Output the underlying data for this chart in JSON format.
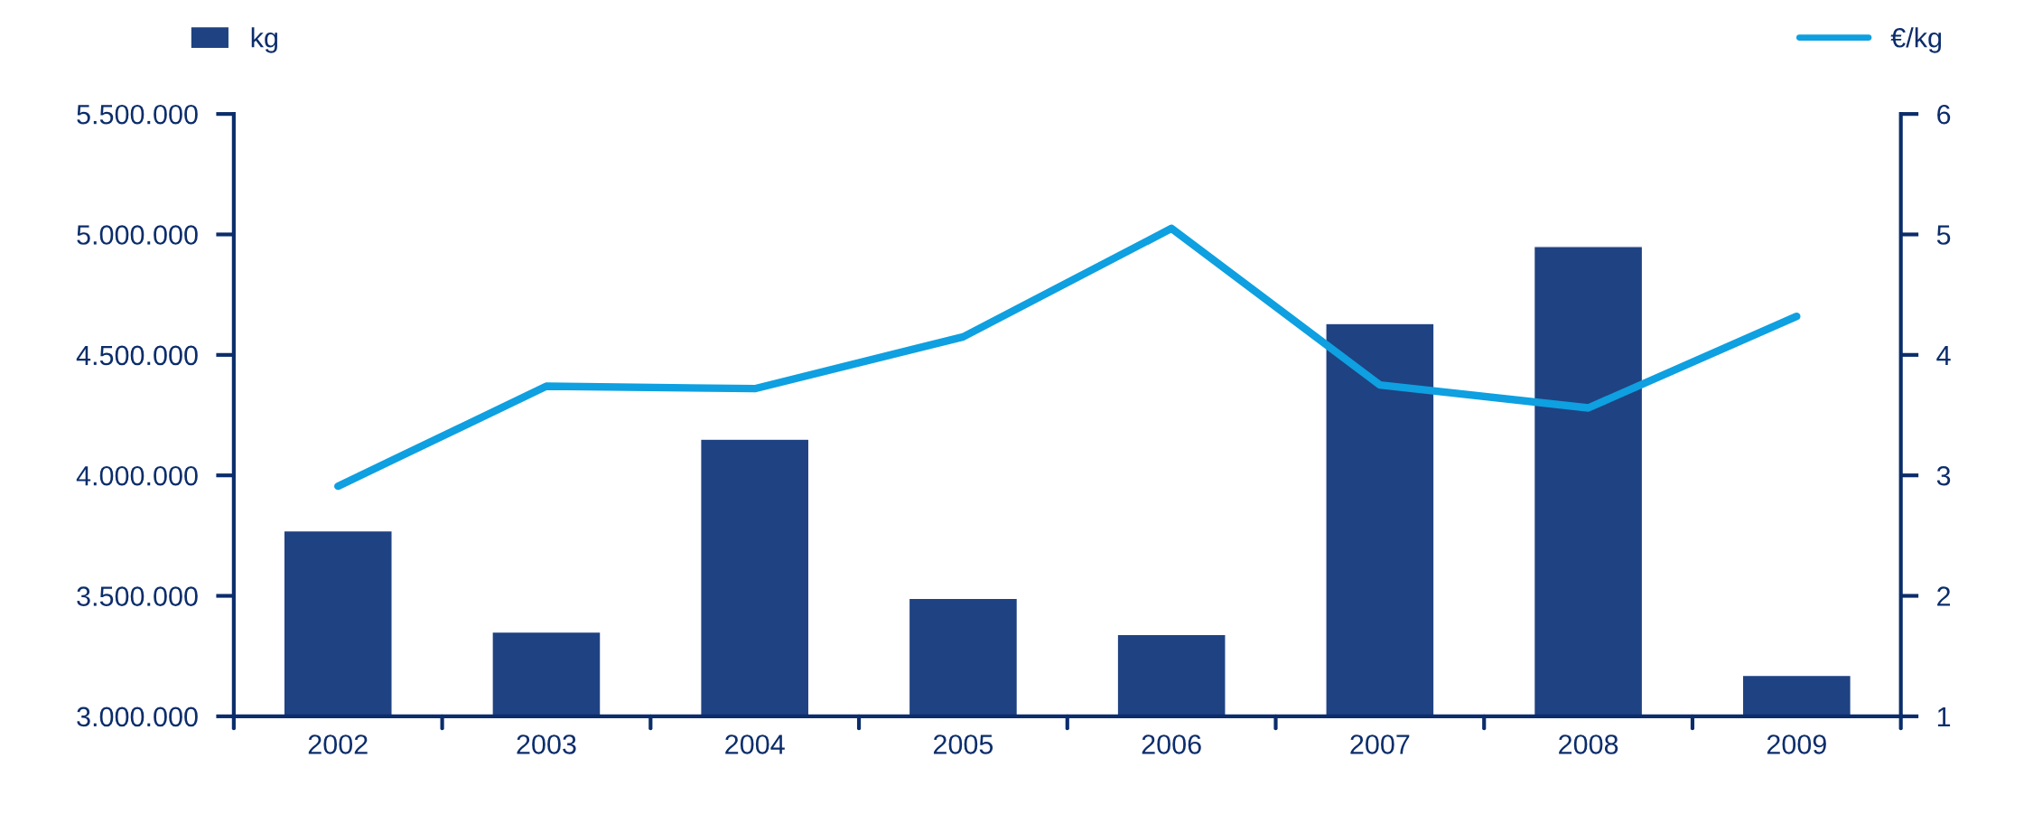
{
  "chart_data": {
    "type": "bar",
    "categories": [
      "2002",
      "2003",
      "2004",
      "2005",
      "2006",
      "2007",
      "2008",
      "2009"
    ],
    "series": [
      {
        "name": "kg",
        "color": "#1f4282",
        "values": [
          3770000,
          3350000,
          4150000,
          3490000,
          3340000,
          4630000,
          4950000,
          3170000
        ]
      },
      {
        "name": "€/kg",
        "type": "line",
        "axis": "y2",
        "color": "#0ea0e0",
        "values": [
          2.91,
          3.74,
          3.72,
          4.15,
          5.05,
          3.75,
          3.56,
          4.32
        ]
      }
    ],
    "ylim": [
      3000000,
      5500000
    ],
    "yticks": [
      {
        "value": 3000000,
        "label": "3.000.000"
      },
      {
        "value": 3500000,
        "label": "3.500.000"
      },
      {
        "value": 4000000,
        "label": "4.000.000"
      },
      {
        "value": 4500000,
        "label": "4.500.000"
      },
      {
        "value": 5000000,
        "label": "5.000.000"
      },
      {
        "value": 5500000,
        "label": "5.500.000"
      }
    ],
    "y2lim": [
      1,
      6
    ],
    "y2ticks": [
      1,
      2,
      3,
      4,
      5,
      6
    ],
    "grid": false,
    "legend": "top",
    "marker": "none",
    "line_style": "solid"
  }
}
